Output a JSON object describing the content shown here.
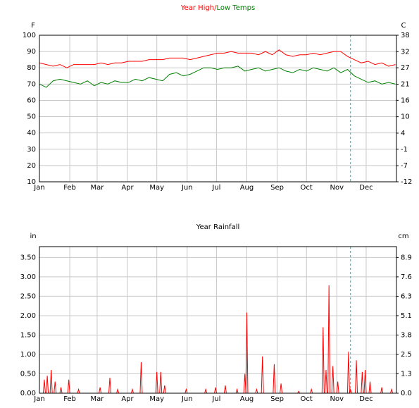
{
  "chart_data": [
    {
      "type": "line",
      "title_parts": [
        "Year High/",
        "Low Temps"
      ],
      "y_label": "F",
      "y2_label": "C",
      "xlim": [
        0,
        365
      ],
      "xticks": [
        {
          "value": 0,
          "label": "Jan"
        },
        {
          "value": 31,
          "label": "Feb"
        },
        {
          "value": 59,
          "label": "Mar"
        },
        {
          "value": 90,
          "label": "Apr"
        },
        {
          "value": 120,
          "label": "May"
        },
        {
          "value": 151,
          "label": "Jun"
        },
        {
          "value": 181,
          "label": "Jul"
        },
        {
          "value": 212,
          "label": "Aug"
        },
        {
          "value": 243,
          "label": "Sep"
        },
        {
          "value": 273,
          "label": "Oct"
        },
        {
          "value": 304,
          "label": "Nov"
        },
        {
          "value": 334,
          "label": "Dec"
        }
      ],
      "ylim": [
        10,
        100
      ],
      "yticks": [
        10,
        20,
        30,
        40,
        50,
        60,
        70,
        80,
        90,
        100
      ],
      "y2lim": [
        -12.2,
        37.8
      ],
      "y2ticks": [
        {
          "value": -12.2,
          "label": "-12"
        },
        {
          "value": -6.7,
          "label": "-7"
        },
        {
          "value": -1.1,
          "label": "-1"
        },
        {
          "value": 4.4,
          "label": "4"
        },
        {
          "value": 10,
          "label": "10"
        },
        {
          "value": 15.6,
          "label": "16"
        },
        {
          "value": 21.1,
          "label": "21"
        },
        {
          "value": 26.7,
          "label": "27"
        },
        {
          "value": 32.2,
          "label": "32"
        },
        {
          "value": 37.8,
          "label": "38"
        }
      ],
      "grid": true,
      "marker_x": 318,
      "marker_color": "#00c0c0",
      "x": [
        0,
        7,
        14,
        21,
        28,
        35,
        42,
        49,
        56,
        63,
        70,
        77,
        84,
        91,
        98,
        105,
        112,
        119,
        126,
        133,
        140,
        147,
        154,
        161,
        168,
        175,
        182,
        189,
        196,
        203,
        210,
        217,
        224,
        231,
        238,
        245,
        252,
        259,
        266,
        273,
        280,
        287,
        294,
        301,
        308,
        315,
        322,
        329,
        336,
        343,
        350,
        357,
        364
      ],
      "series": [
        {
          "name": "High",
          "color": "#ff0000",
          "values": [
            83,
            82,
            81,
            82,
            80,
            82,
            82,
            82,
            82,
            83,
            82,
            83,
            83,
            84,
            84,
            84,
            85,
            85,
            85,
            86,
            86,
            86,
            85,
            86,
            87,
            88,
            89,
            89,
            90,
            89,
            89,
            89,
            88,
            90,
            88,
            91,
            88,
            87,
            88,
            88,
            89,
            88,
            89,
            90,
            90,
            87,
            85,
            83,
            84,
            82,
            83,
            81,
            82
          ]
        },
        {
          "name": "Low",
          "color": "#008000",
          "values": [
            70,
            68,
            72,
            73,
            72,
            71,
            70,
            72,
            69,
            71,
            70,
            72,
            71,
            71,
            73,
            72,
            74,
            73,
            72,
            76,
            77,
            75,
            76,
            78,
            80,
            80,
            79,
            80,
            80,
            81,
            78,
            79,
            80,
            78,
            79,
            80,
            78,
            77,
            79,
            78,
            80,
            79,
            78,
            80,
            77,
            79,
            75,
            73,
            71,
            72,
            70,
            71,
            70
          ]
        }
      ]
    },
    {
      "type": "spike",
      "title": "Year Rainfall",
      "title_color": "#ff0000",
      "y_label": "in",
      "y2_label": "cm",
      "xlim": [
        0,
        365
      ],
      "xticks": [
        {
          "value": 0,
          "label": "Jan"
        },
        {
          "value": 31,
          "label": "Feb"
        },
        {
          "value": 59,
          "label": "Mar"
        },
        {
          "value": 90,
          "label": "Apr"
        },
        {
          "value": 120,
          "label": "May"
        },
        {
          "value": 151,
          "label": "Jun"
        },
        {
          "value": 181,
          "label": "Jul"
        },
        {
          "value": 212,
          "label": "Aug"
        },
        {
          "value": 243,
          "label": "Sep"
        },
        {
          "value": 273,
          "label": "Oct"
        },
        {
          "value": 304,
          "label": "Nov"
        },
        {
          "value": 334,
          "label": "Dec"
        }
      ],
      "ylim": [
        0,
        3.78
      ],
      "yticks": [
        {
          "value": 0,
          "label": "0.00"
        },
        {
          "value": 0.5,
          "label": "0.50"
        },
        {
          "value": 1,
          "label": "1.00"
        },
        {
          "value": 1.5,
          "label": "1.50"
        },
        {
          "value": 2,
          "label": "2.00"
        },
        {
          "value": 2.5,
          "label": "2.50"
        },
        {
          "value": 3,
          "label": "3.00"
        },
        {
          "value": 3.5,
          "label": "3.50"
        }
      ],
      "y2lim": [
        0,
        9.6
      ],
      "y2ticks": [
        {
          "value": 0,
          "label": "0.0"
        },
        {
          "value": 1.27,
          "label": "1.3"
        },
        {
          "value": 2.54,
          "label": "2.5"
        },
        {
          "value": 3.81,
          "label": "3.8"
        },
        {
          "value": 5.08,
          "label": "5.1"
        },
        {
          "value": 6.35,
          "label": "6.3"
        },
        {
          "value": 7.62,
          "label": "7.6"
        },
        {
          "value": 8.89,
          "label": "8.9"
        }
      ],
      "grid": true,
      "marker_x": 318,
      "marker_color": "#00c0c0",
      "x": [
        5,
        8,
        12,
        16,
        22,
        30,
        40,
        62,
        72,
        80,
        95,
        104,
        120,
        124,
        128,
        150,
        170,
        180,
        190,
        202,
        210,
        212,
        222,
        228,
        240,
        247,
        265,
        278,
        290,
        293,
        296,
        300,
        305,
        316,
        318,
        324,
        330,
        333,
        338,
        350,
        360
      ],
      "series": [
        {
          "name": "Rain",
          "color": "#ff0000",
          "values": [
            0.35,
            0.45,
            0.6,
            0.3,
            0.15,
            0.35,
            0.1,
            0.15,
            0.4,
            0.1,
            0.1,
            0.8,
            0.55,
            0.55,
            0.2,
            0.1,
            0.1,
            0.15,
            0.2,
            0.1,
            0.5,
            2.08,
            0.1,
            0.95,
            0.75,
            0.25,
            0.05,
            0.1,
            1.7,
            0.6,
            2.78,
            0.7,
            0.3,
            1.07,
            0.1,
            0.85,
            0.55,
            0.6,
            0.3,
            0.15,
            0.1
          ]
        }
      ]
    }
  ]
}
